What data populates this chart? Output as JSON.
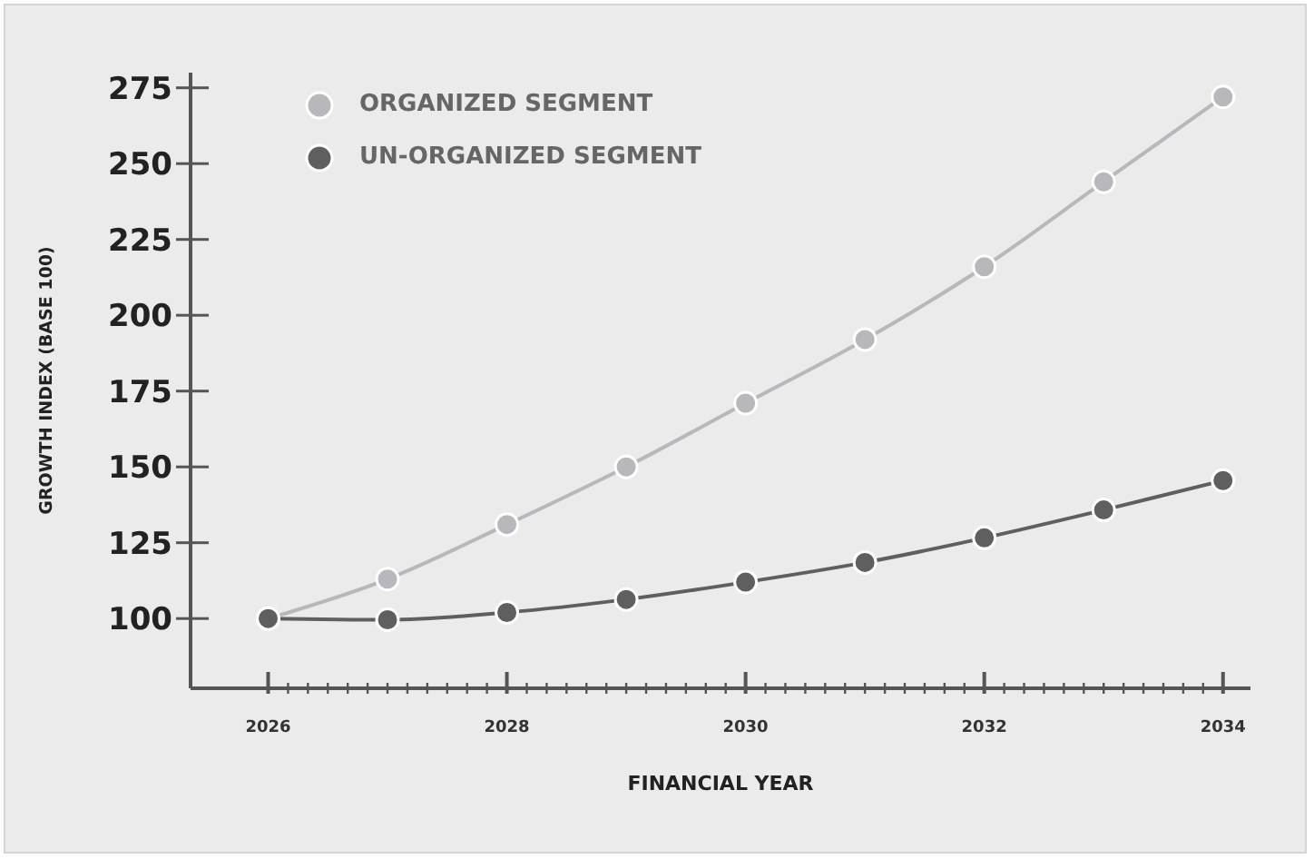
{
  "chart_data": {
    "type": "line",
    "xlabel": "FINANCIAL YEAR",
    "ylabel": "GROWTH INDEX (BASE 100)",
    "x": [
      2026,
      2027,
      2028,
      2029,
      2030,
      2031,
      2032,
      2033,
      2034
    ],
    "series": [
      {
        "name": "ORGANIZED SEGMENT",
        "color": "#b8b8bc",
        "values": [
          100,
          113,
          131,
          150,
          171,
          192,
          216,
          244,
          272
        ]
      },
      {
        "name": "UN-ORGANIZED SEGMENT",
        "color": "#5f5f5f",
        "values": [
          100,
          99.6,
          102,
          106.3,
          112,
          118.5,
          126.6,
          135.8,
          145.5
        ]
      }
    ],
    "xlim": [
      2025.35,
      2034.23
    ],
    "xticks": [
      2026,
      {
        "value": 2026.1667,
        "label": null
      },
      {
        "value": 2026.3333,
        "label": null
      },
      {
        "value": 2026.5,
        "label": null
      },
      {
        "value": 2026.6667,
        "label": null
      },
      {
        "value": 2026.8333,
        "label": null
      },
      {
        "value": 2027,
        "label": null
      },
      {
        "value": 2027.1667,
        "label": null
      },
      {
        "value": 2027.3333,
        "label": null
      },
      {
        "value": 2027.5,
        "label": null
      },
      {
        "value": 2027.6667,
        "label": null
      },
      {
        "value": 2027.8333,
        "label": null
      },
      2028,
      {
        "value": 2028.1667,
        "label": null
      },
      {
        "value": 2028.3333,
        "label": null
      },
      {
        "value": 2028.5,
        "label": null
      },
      {
        "value": 2028.6667,
        "label": null
      },
      {
        "value": 2028.8333,
        "label": null
      },
      {
        "value": 2029,
        "label": null
      },
      {
        "value": 2029.1667,
        "label": null
      },
      {
        "value": 2029.3333,
        "label": null
      },
      {
        "value": 2029.5,
        "label": null
      },
      {
        "value": 2029.6667,
        "label": null
      },
      {
        "value": 2029.8333,
        "label": null
      },
      2030,
      {
        "value": 2030.1667,
        "label": null
      },
      {
        "value": 2030.3333,
        "label": null
      },
      {
        "value": 2030.5,
        "label": null
      },
      {
        "value": 2030.6667,
        "label": null
      },
      {
        "value": 2030.8333,
        "label": null
      },
      {
        "value": 2031,
        "label": null
      },
      {
        "value": 2031.1667,
        "label": null
      },
      {
        "value": 2031.3333,
        "label": null
      },
      {
        "value": 2031.5,
        "label": null
      },
      {
        "value": 2031.6667,
        "label": null
      },
      {
        "value": 2031.8333,
        "label": null
      },
      2032,
      {
        "value": 2032.1667,
        "label": null
      },
      {
        "value": 2032.3333,
        "label": null
      },
      {
        "value": 2032.5,
        "label": null
      },
      {
        "value": 2032.6667,
        "label": null
      },
      {
        "value": 2032.8333,
        "label": null
      },
      {
        "value": 2033,
        "label": null
      },
      {
        "value": 2033.1667,
        "label": null
      },
      {
        "value": 2033.3333,
        "label": null
      },
      {
        "value": 2033.5,
        "label": null
      },
      {
        "value": 2033.6667,
        "label": null
      },
      {
        "value": 2033.8333,
        "label": null
      },
      2034
    ],
    "ylim": [
      77,
      280
    ],
    "yticks": [
      100,
      125,
      150,
      175,
      200,
      225,
      250,
      275
    ],
    "grid": false,
    "legend": "top left",
    "marker": "circle",
    "line_style": "solid"
  }
}
